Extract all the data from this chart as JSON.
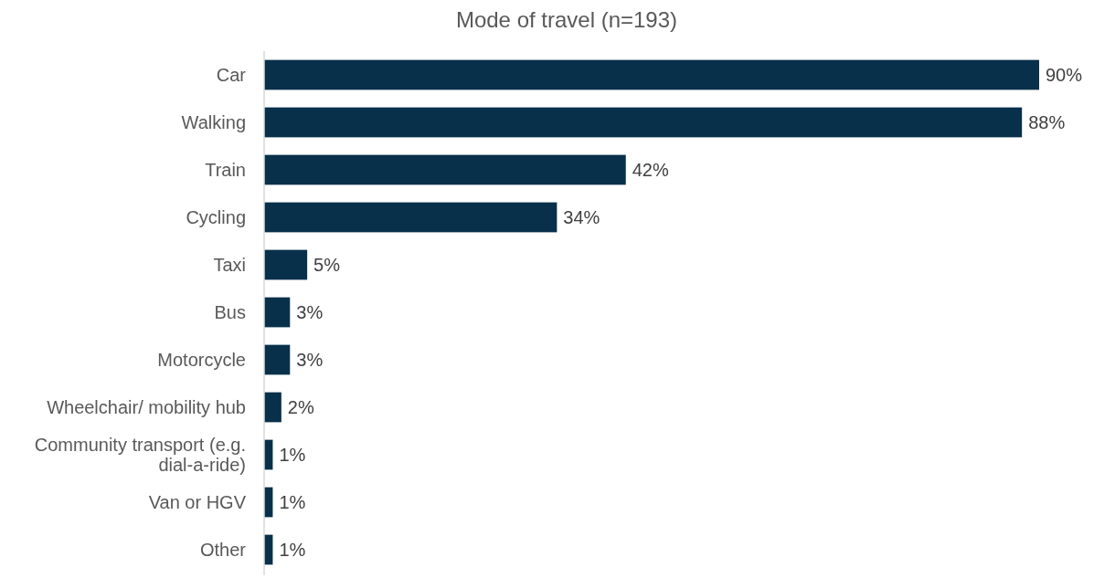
{
  "chart_data": {
    "type": "bar",
    "orientation": "horizontal",
    "title": "Mode of travel (n=193)",
    "categories": [
      "Car",
      "Walking",
      "Train",
      "Cycling",
      "Taxi",
      "Bus",
      "Motorcycle",
      "Wheelchair/ mobility hub",
      "Community transport (e.g. dial-a-ride)",
      "Van or HGV",
      "Other"
    ],
    "values": [
      90,
      88,
      42,
      34,
      5,
      3,
      3,
      2,
      1,
      1,
      1
    ],
    "value_labels": [
      "90%",
      "88%",
      "42%",
      "34%",
      "5%",
      "3%",
      "3%",
      "2%",
      "1%",
      "1%",
      "1%"
    ],
    "color": "#08304b",
    "tick_labels": "y"
  }
}
